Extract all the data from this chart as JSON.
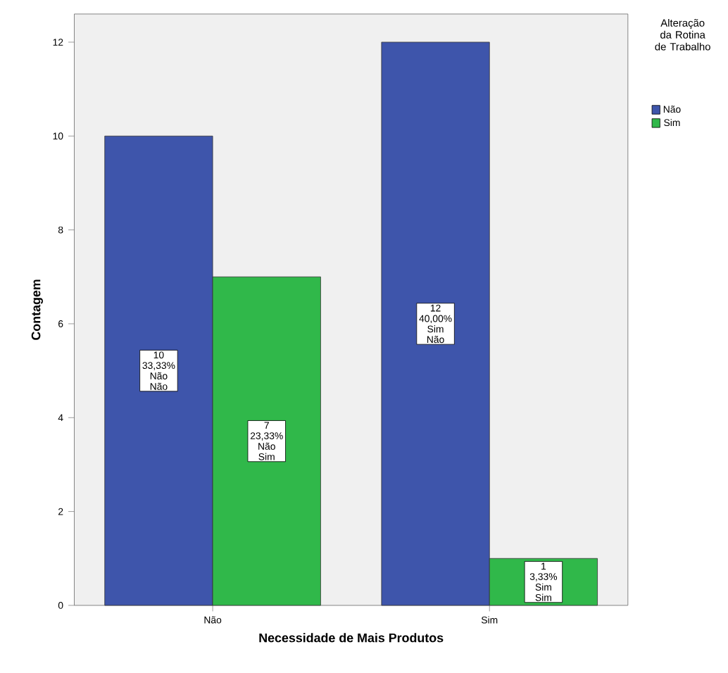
{
  "chart_data": {
    "type": "bar",
    "xlabel": "Necessidade de Mais Produtos",
    "ylabel": "Contagem",
    "legend_title": "Alteração da Rotina de Trabalho",
    "categories": [
      "Não",
      "Sim"
    ],
    "series": [
      {
        "name": "Não",
        "color": "#3e55ab",
        "values": [
          10,
          12
        ],
        "value_labels": [
          "10 33,33% Não Não",
          "12 40,00% Sim Não"
        ]
      },
      {
        "name": "Sim",
        "color": "#30b84a",
        "values": [
          7,
          1
        ],
        "value_labels": [
          "7 23,33% Não Sim",
          "1 3,33% Sim Sim"
        ]
      }
    ],
    "ylim": [
      0,
      12.6
    ],
    "yticks": [
      0,
      2,
      4,
      6,
      8,
      10,
      12
    ],
    "grid": false,
    "legend": "top right"
  }
}
